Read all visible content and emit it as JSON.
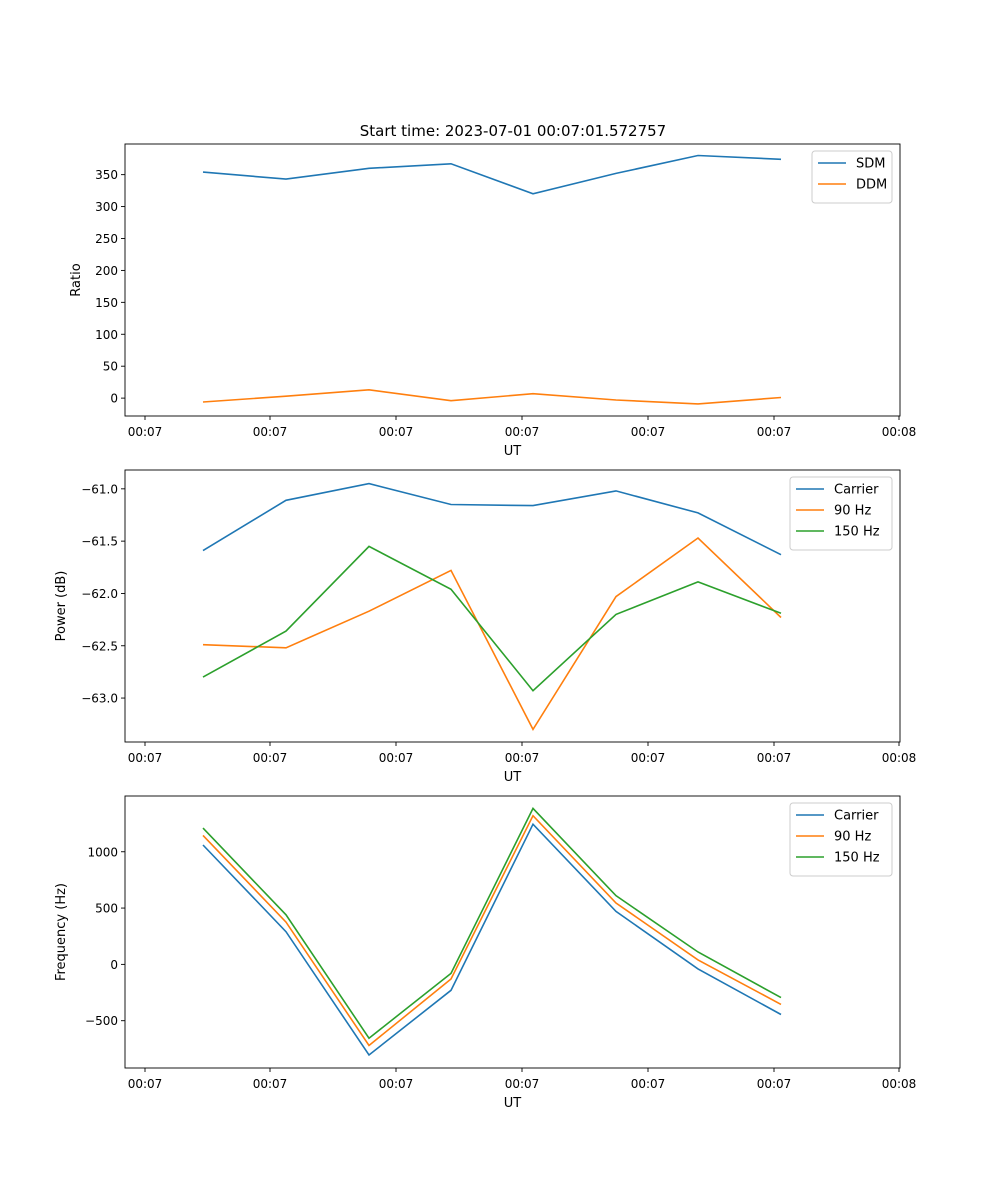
{
  "figure": {
    "title": "Start time: 2023-07-01 00:07:01.572757"
  },
  "chart_data": [
    {
      "type": "line",
      "title": "Start time: 2023-07-01 00:07:01.572757",
      "xlabel": "UT",
      "ylabel": "Ratio",
      "x_tick_labels": [
        "00:07",
        "00:07",
        "00:07",
        "00:07",
        "00:07",
        "00:07",
        "00:07",
        "00:08"
      ],
      "y_ticks": [
        0,
        50,
        100,
        150,
        200,
        250,
        300,
        350
      ],
      "ylim": [
        -28,
        398
      ],
      "legend_position": "upper-right",
      "series": [
        {
          "name": "SDM",
          "color": "#1f77b4",
          "values": [
            354,
            343,
            360,
            367,
            320,
            352,
            380,
            374
          ]
        },
        {
          "name": "DDM",
          "color": "#ff7f0e",
          "values": [
            -6,
            3,
            13,
            -4,
            7,
            -3,
            -9,
            1
          ]
        }
      ]
    },
    {
      "type": "line",
      "xlabel": "UT",
      "ylabel": "Power (dB)",
      "x_tick_labels": [
        "00:07",
        "00:07",
        "00:07",
        "00:07",
        "00:07",
        "00:07",
        "00:07",
        "00:08"
      ],
      "y_ticks": [
        -63.0,
        -62.5,
        -62.0,
        -61.5,
        -61.0
      ],
      "ylim": [
        -63.42,
        -60.82
      ],
      "legend_position": "upper-right",
      "series": [
        {
          "name": "Carrier",
          "color": "#1f77b4",
          "values": [
            -61.59,
            -61.11,
            -60.95,
            -61.15,
            -61.16,
            -61.02,
            -61.23,
            -61.63
          ]
        },
        {
          "name": "90 Hz",
          "color": "#ff7f0e",
          "values": [
            -62.49,
            -62.52,
            -62.17,
            -61.78,
            -63.3,
            -62.03,
            -61.47,
            -62.23
          ]
        },
        {
          "name": "150 Hz",
          "color": "#2ca02c",
          "values": [
            -62.8,
            -62.36,
            -61.55,
            -61.96,
            -62.93,
            -62.2,
            -61.89,
            -62.19
          ]
        }
      ]
    },
    {
      "type": "line",
      "xlabel": "UT",
      "ylabel": "Frequency (Hz)",
      "x_tick_labels": [
        "00:07",
        "00:07",
        "00:07",
        "00:07",
        "00:07",
        "00:07",
        "00:07",
        "00:08"
      ],
      "y_ticks": [
        -500,
        0,
        500,
        1000
      ],
      "ylim": [
        -920,
        1495
      ],
      "legend_position": "upper-right",
      "series": [
        {
          "name": "Carrier",
          "color": "#1f77b4",
          "values": [
            1060,
            290,
            -805,
            -230,
            1245,
            470,
            -40,
            -445
          ]
        },
        {
          "name": "90 Hz",
          "color": "#ff7f0e",
          "values": [
            1145,
            375,
            -720,
            -130,
            1320,
            545,
            40,
            -355
          ]
        },
        {
          "name": "150 Hz",
          "color": "#2ca02c",
          "values": [
            1210,
            440,
            -655,
            -80,
            1385,
            610,
            110,
            -295
          ]
        }
      ]
    }
  ]
}
